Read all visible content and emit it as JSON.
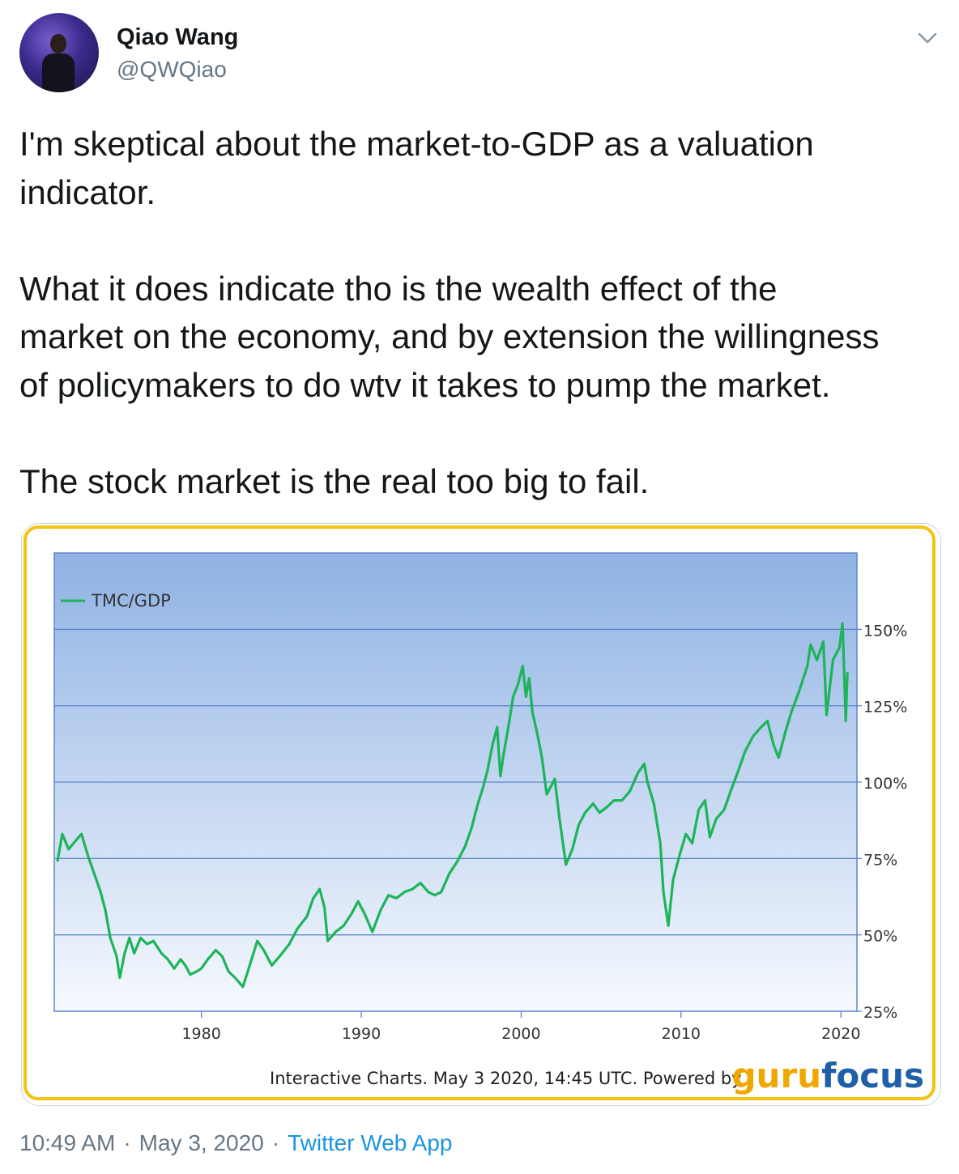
{
  "tweet": {
    "user_name": "Qiao Wang",
    "handle": "@QWQiao",
    "paragraphs": [
      [
        "I'm skeptical about the market-to-GDP as a valuation",
        "indicator."
      ],
      [
        "What it does indicate tho is the wealth effect of the",
        "market on the economy, and by extension the willingness",
        "of policymakers to do wtv it takes to pump the market."
      ],
      [
        "The stock market is the real too big to fail."
      ]
    ],
    "time": "10:49 AM",
    "date": "May 3, 2020",
    "separator": "·",
    "source": "Twitter Web App"
  },
  "colors": {
    "accent": "#1b95e0",
    "chart_line": "#1db45a",
    "chart_border": "#f3c310",
    "logo_gold": "#f0a800",
    "logo_blue": "#1f5fa8"
  },
  "chart_data": {
    "type": "line",
    "series": [
      {
        "name": "TMC/GDP",
        "points": [
          [
            1971.0,
            74
          ],
          [
            1971.3,
            83
          ],
          [
            1971.7,
            78
          ],
          [
            1972.0,
            80
          ],
          [
            1972.5,
            83
          ],
          [
            1972.9,
            76
          ],
          [
            1973.3,
            70
          ],
          [
            1973.7,
            64
          ],
          [
            1974.0,
            58
          ],
          [
            1974.3,
            49
          ],
          [
            1974.7,
            43
          ],
          [
            1974.9,
            36
          ],
          [
            1975.2,
            44
          ],
          [
            1975.5,
            49
          ],
          [
            1975.8,
            44
          ],
          [
            1976.2,
            49
          ],
          [
            1976.6,
            47
          ],
          [
            1977.0,
            48
          ],
          [
            1977.5,
            44
          ],
          [
            1977.9,
            42
          ],
          [
            1978.3,
            39
          ],
          [
            1978.7,
            42
          ],
          [
            1979.0,
            40
          ],
          [
            1979.3,
            37
          ],
          [
            1979.7,
            38
          ],
          [
            1980.0,
            39
          ],
          [
            1980.4,
            42
          ],
          [
            1980.9,
            45
          ],
          [
            1981.3,
            43
          ],
          [
            1981.7,
            38
          ],
          [
            1982.1,
            36
          ],
          [
            1982.6,
            33
          ],
          [
            1982.9,
            38
          ],
          [
            1983.5,
            48
          ],
          [
            1983.9,
            45
          ],
          [
            1984.4,
            40
          ],
          [
            1984.9,
            43
          ],
          [
            1985.5,
            47
          ],
          [
            1986.0,
            52
          ],
          [
            1986.6,
            56
          ],
          [
            1987.0,
            62
          ],
          [
            1987.4,
            65
          ],
          [
            1987.7,
            59
          ],
          [
            1987.9,
            48
          ],
          [
            1988.4,
            51
          ],
          [
            1988.9,
            53
          ],
          [
            1989.4,
            57
          ],
          [
            1989.8,
            61
          ],
          [
            1990.2,
            57
          ],
          [
            1990.7,
            51
          ],
          [
            1991.2,
            58
          ],
          [
            1991.7,
            63
          ],
          [
            1992.2,
            62
          ],
          [
            1992.7,
            64
          ],
          [
            1993.2,
            65
          ],
          [
            1993.7,
            67
          ],
          [
            1994.2,
            64
          ],
          [
            1994.6,
            63
          ],
          [
            1995.0,
            64
          ],
          [
            1995.5,
            70
          ],
          [
            1996.0,
            74
          ],
          [
            1996.5,
            79
          ],
          [
            1996.9,
            85
          ],
          [
            1997.3,
            93
          ],
          [
            1997.6,
            98
          ],
          [
            1997.9,
            104
          ],
          [
            1998.2,
            112
          ],
          [
            1998.5,
            118
          ],
          [
            1998.7,
            102
          ],
          [
            1998.9,
            109
          ],
          [
            1999.2,
            118
          ],
          [
            1999.5,
            128
          ],
          [
            1999.8,
            132
          ],
          [
            2000.1,
            138
          ],
          [
            2000.3,
            128
          ],
          [
            2000.5,
            134
          ],
          [
            2000.7,
            123
          ],
          [
            2001.0,
            116
          ],
          [
            2001.3,
            108
          ],
          [
            2001.6,
            96
          ],
          [
            2001.8,
            98
          ],
          [
            2002.1,
            101
          ],
          [
            2002.4,
            88
          ],
          [
            2002.8,
            73
          ],
          [
            2003.2,
            78
          ],
          [
            2003.6,
            86
          ],
          [
            2004.0,
            90
          ],
          [
            2004.5,
            93
          ],
          [
            2004.9,
            90
          ],
          [
            2005.4,
            92
          ],
          [
            2005.8,
            94
          ],
          [
            2006.3,
            94
          ],
          [
            2006.8,
            97
          ],
          [
            2007.3,
            103
          ],
          [
            2007.7,
            106
          ],
          [
            2007.9,
            100
          ],
          [
            2008.3,
            93
          ],
          [
            2008.7,
            80
          ],
          [
            2008.9,
            64
          ],
          [
            2009.2,
            53
          ],
          [
            2009.5,
            68
          ],
          [
            2009.9,
            76
          ],
          [
            2010.3,
            83
          ],
          [
            2010.7,
            80
          ],
          [
            2011.1,
            91
          ],
          [
            2011.5,
            94
          ],
          [
            2011.8,
            82
          ],
          [
            2012.2,
            88
          ],
          [
            2012.7,
            91
          ],
          [
            2013.1,
            97
          ],
          [
            2013.6,
            104
          ],
          [
            2014.0,
            110
          ],
          [
            2014.5,
            115
          ],
          [
            2015.0,
            118
          ],
          [
            2015.4,
            120
          ],
          [
            2015.8,
            112
          ],
          [
            2016.1,
            108
          ],
          [
            2016.5,
            116
          ],
          [
            2016.9,
            123
          ],
          [
            2017.4,
            130
          ],
          [
            2017.9,
            138
          ],
          [
            2018.1,
            145
          ],
          [
            2018.5,
            140
          ],
          [
            2018.9,
            146
          ],
          [
            2019.1,
            122
          ],
          [
            2019.5,
            140
          ],
          [
            2019.9,
            144
          ],
          [
            2020.1,
            152
          ],
          [
            2020.3,
            120
          ],
          [
            2020.4,
            136
          ]
        ]
      }
    ],
    "x_ticks": [
      "1980",
      "1990",
      "2000",
      "2010",
      "2020"
    ],
    "y_ticks": [
      "25%",
      "50%",
      "75%",
      "100%",
      "125%",
      "150%"
    ],
    "xlim": [
      1970.8,
      2021.0
    ],
    "ylim": [
      25,
      175
    ],
    "grid": true,
    "legend": "top-left",
    "footer_text": "Interactive Charts. May 3 2020, 14:45 UTC. Powered by",
    "logo_parts": [
      "guru",
      "focus"
    ]
  }
}
